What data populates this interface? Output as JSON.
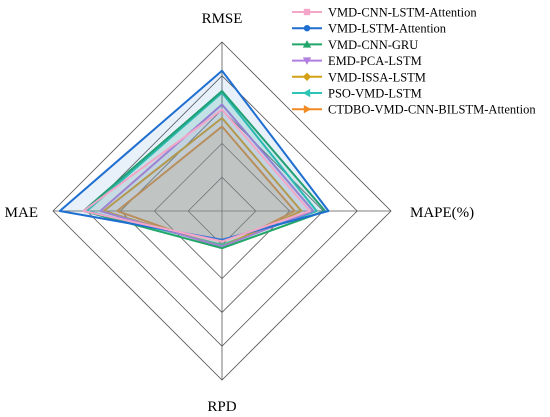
{
  "chart_data": {
    "type": "radar",
    "axes": [
      "RMSE",
      "MAPE(%)",
      "RPD",
      "MAE"
    ],
    "grid": true,
    "rings": 5,
    "scale_max": 1.0,
    "legend_position": "top-right",
    "series": [
      {
        "name": "VMD-CNN-LSTM-Attention",
        "color": "#f4a6c8",
        "marker": "square",
        "values": [
          0.6,
          0.52,
          0.18,
          0.82
        ]
      },
      {
        "name": "VMD-LSTM-Attention",
        "color": "#1f6fd1",
        "marker": "circle",
        "values": [
          0.83,
          0.63,
          0.17,
          0.96
        ]
      },
      {
        "name": "VMD-CNN-GRU",
        "color": "#22a66a",
        "marker": "triangle-up",
        "values": [
          0.71,
          0.61,
          0.22,
          0.82
        ]
      },
      {
        "name": "EMD-PCA-LSTM",
        "color": "#b07fe0",
        "marker": "triangle-down",
        "values": [
          0.63,
          0.54,
          0.21,
          0.72
        ]
      },
      {
        "name": "VMD-ISSA-LSTM",
        "color": "#d4a017",
        "marker": "diamond",
        "values": [
          0.55,
          0.47,
          0.21,
          0.7
        ]
      },
      {
        "name": "PSO-VMD-LSTM",
        "color": "#2ec4b6",
        "marker": "triangle-left",
        "values": [
          0.7,
          0.56,
          0.2,
          0.8
        ]
      },
      {
        "name": "CTDBO-VMD-CNN-BILSTM-Attention",
        "color": "#f08a24",
        "marker": "triangle-right",
        "values": [
          0.5,
          0.43,
          0.22,
          0.62
        ]
      }
    ]
  }
}
